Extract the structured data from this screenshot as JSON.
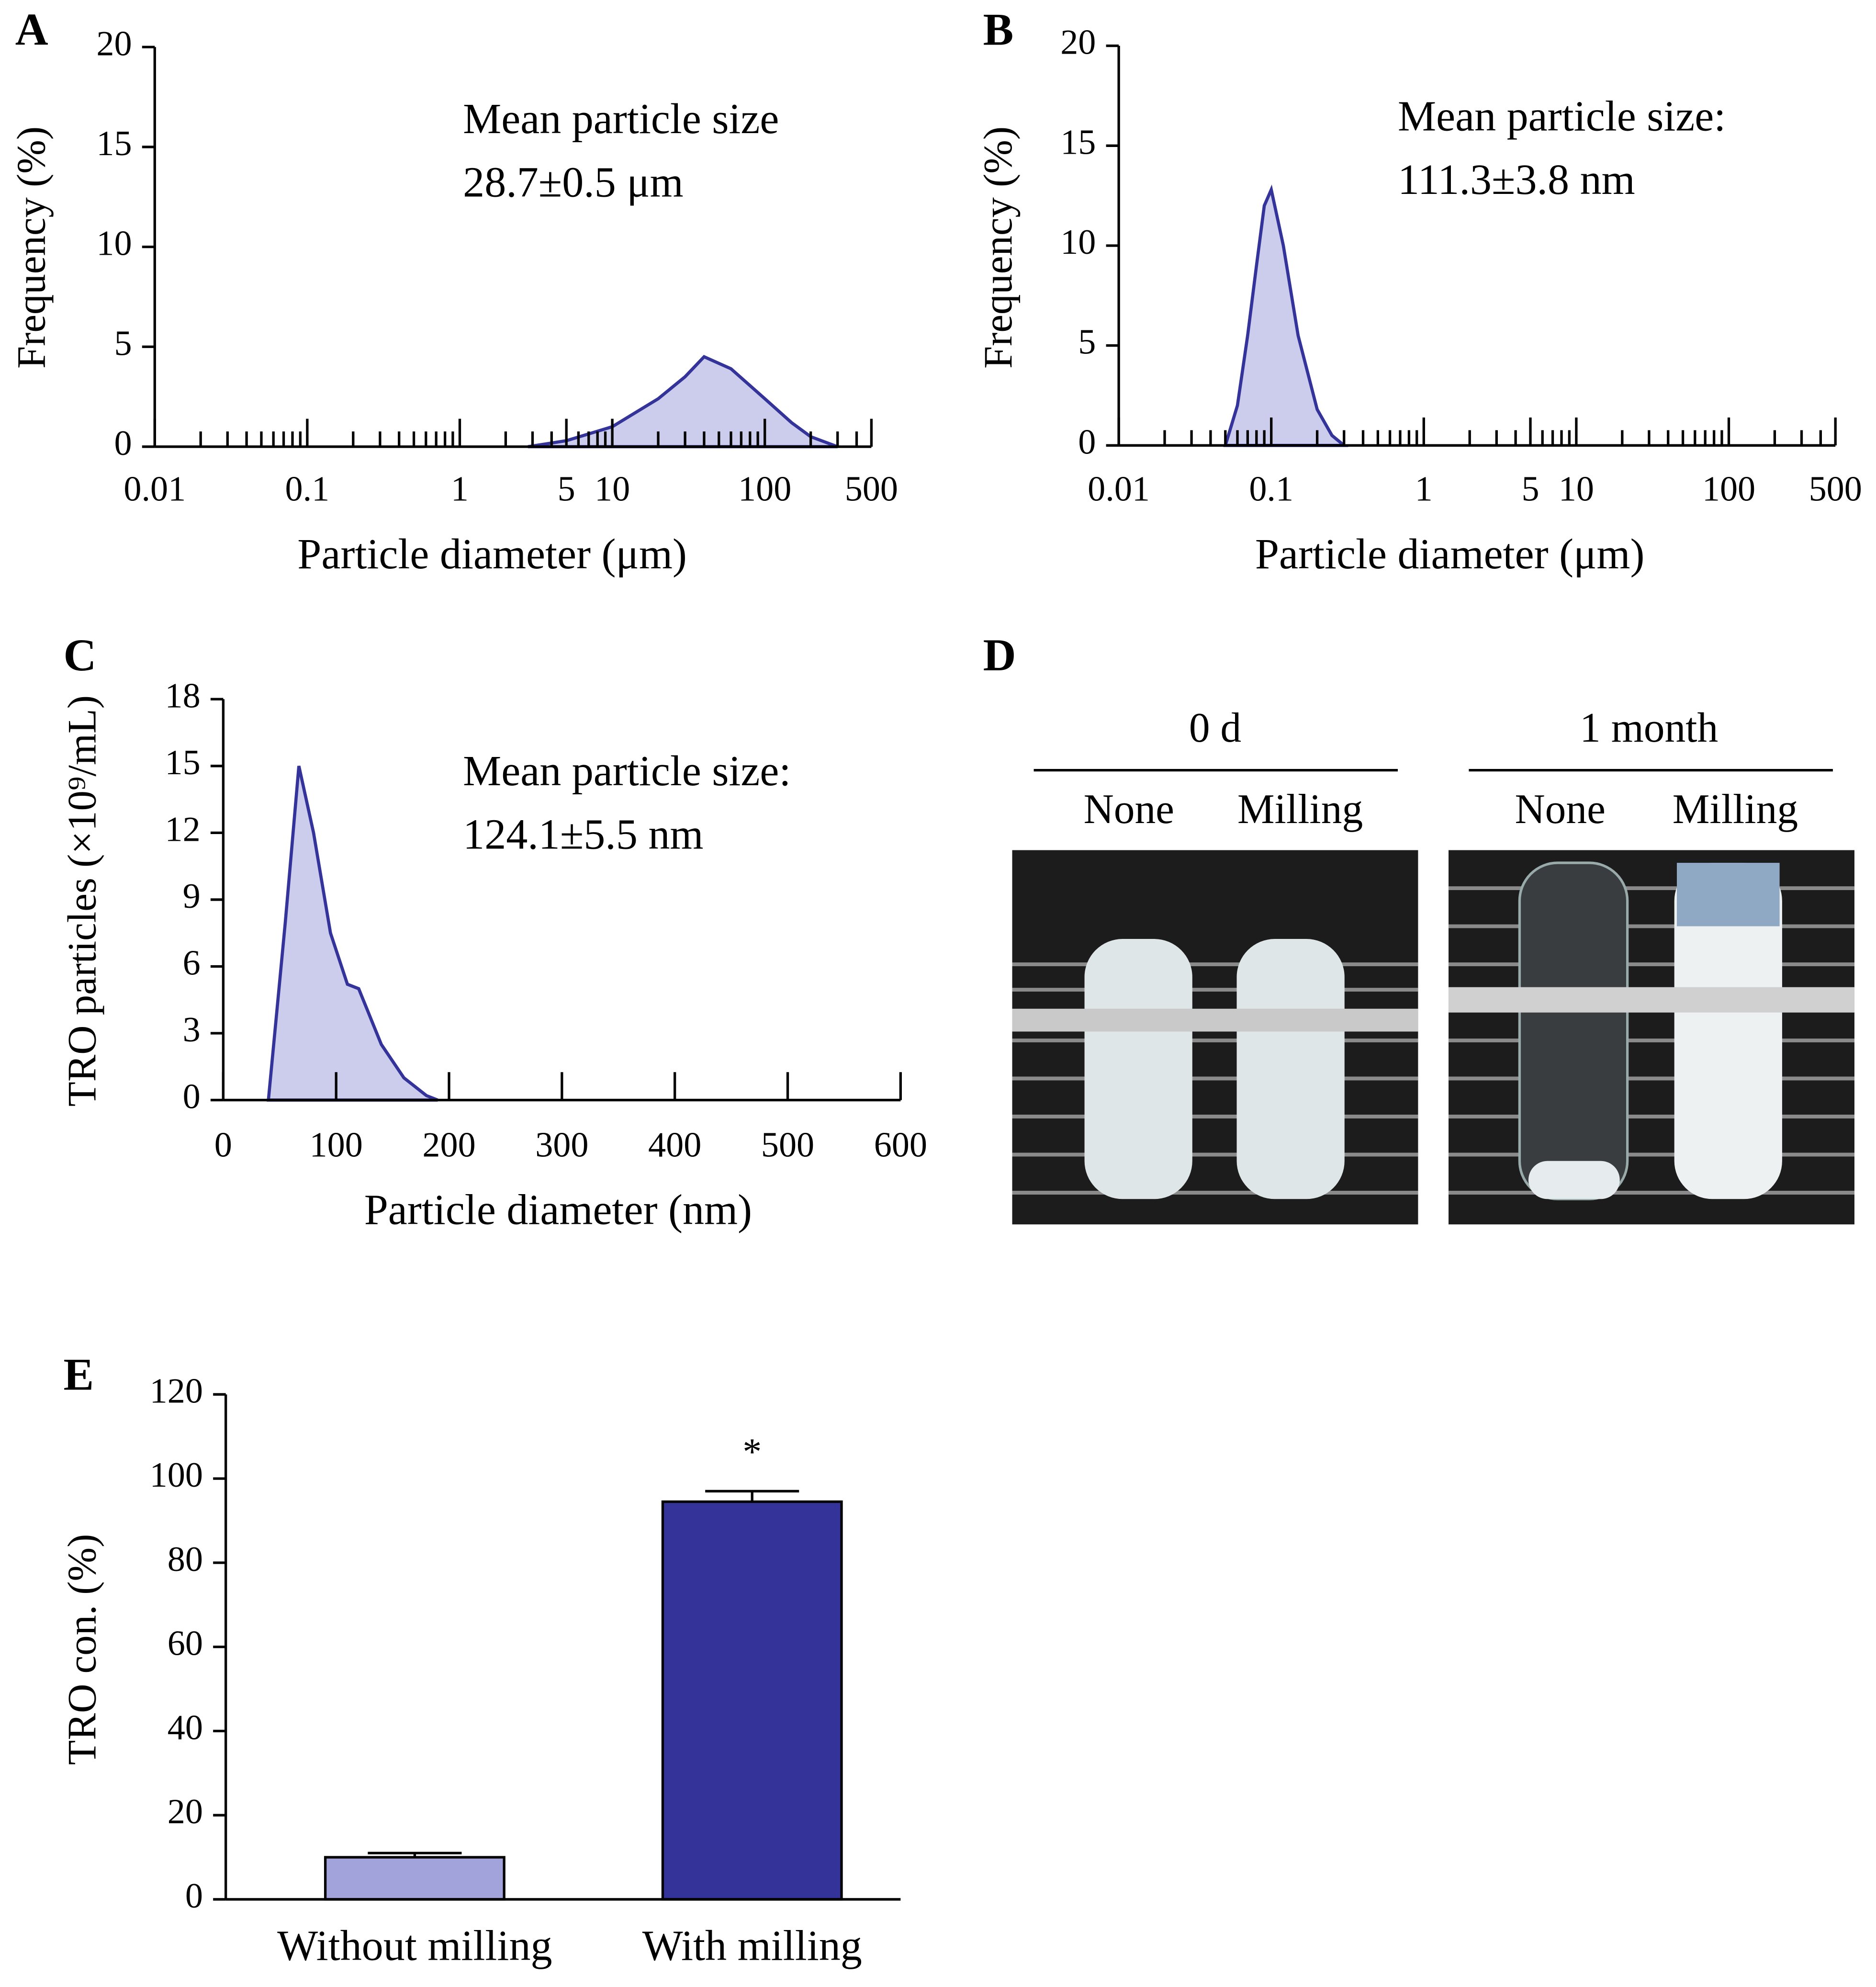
{
  "chart_data": [
    {
      "type": "area",
      "panel_label": "A",
      "xscale": "log",
      "x_label": "Particle diameter (μm)",
      "y_label": "Frequency (%)",
      "annotation": [
        "Mean particle size",
        "28.7±0.5 μm"
      ],
      "x": [
        2.8,
        5,
        10,
        20,
        30,
        40,
        60,
        100,
        150,
        200,
        300
      ],
      "values": [
        0,
        0.3,
        1.0,
        2.4,
        3.5,
        4.5,
        3.9,
        2.4,
        1.2,
        0.5,
        0
      ],
      "color": "#33339a",
      "fill": "#ccccec",
      "xlim": [
        0.01,
        500
      ],
      "xticks": [
        0.01,
        0.1,
        1,
        5,
        10,
        100,
        500
      ],
      "xticks_minor": [
        0.02,
        0.03,
        0.04,
        0.05,
        0.06,
        0.07,
        0.08,
        0.09,
        0.2,
        0.3,
        0.4,
        0.5,
        0.6,
        0.7,
        0.8,
        0.9,
        2,
        3,
        4,
        6,
        7,
        8,
        9,
        20,
        30,
        40,
        50,
        60,
        70,
        80,
        90,
        200,
        300,
        400
      ],
      "ylim": [
        0,
        20
      ],
      "yticks": [
        0,
        5,
        10,
        15,
        20
      ]
    },
    {
      "type": "area",
      "panel_label": "B",
      "xscale": "log",
      "x_label": "Particle diameter (μm)",
      "y_label": "Frequency (%)",
      "annotation": [
        "Mean particle size:",
        "111.3±3.8 nm"
      ],
      "x": [
        0.05,
        0.06,
        0.07,
        0.08,
        0.09,
        0.1,
        0.12,
        0.15,
        0.2,
        0.25,
        0.3
      ],
      "values": [
        0,
        2,
        5.5,
        9,
        12,
        12.8,
        10,
        5.5,
        1.8,
        0.5,
        0
      ],
      "color": "#33339a",
      "fill": "#ccccec",
      "xlim": [
        0.01,
        500
      ],
      "xticks": [
        0.01,
        0.1,
        1,
        5,
        10,
        100,
        500
      ],
      "xticks_minor": [
        0.02,
        0.03,
        0.04,
        0.05,
        0.06,
        0.07,
        0.08,
        0.09,
        0.2,
        0.3,
        0.4,
        0.5,
        0.6,
        0.7,
        0.8,
        0.9,
        2,
        3,
        4,
        6,
        7,
        8,
        9,
        20,
        30,
        40,
        50,
        60,
        70,
        80,
        90,
        200,
        300,
        400
      ],
      "ylim": [
        0,
        20
      ],
      "yticks": [
        0,
        5,
        10,
        15,
        20
      ]
    },
    {
      "type": "area",
      "panel_label": "C",
      "xscale": "linear",
      "x_label": "Particle diameter (nm)",
      "y_label": "TRO particles (×10⁹/mL)",
      "annotation": [
        "Mean particle size:",
        "124.1±5.5 nm"
      ],
      "x": [
        40,
        55,
        67,
        80,
        95,
        110,
        120,
        140,
        160,
        180,
        190
      ],
      "values": [
        0,
        8,
        15,
        12,
        7.5,
        5.2,
        5,
        2.5,
        1,
        0.2,
        0
      ],
      "color": "#33339a",
      "fill": "#ccccec",
      "xlim": [
        0,
        600
      ],
      "xticks": [
        0,
        100,
        200,
        300,
        400,
        500,
        600
      ],
      "ylim": [
        0,
        18
      ],
      "yticks": [
        0,
        3,
        6,
        9,
        12,
        15,
        18
      ]
    },
    {
      "type": "bar",
      "panel_label": "E",
      "y_label": "TRO con. (%)",
      "categories": [
        "Without milling",
        "With milling"
      ],
      "values": [
        10,
        94.5
      ],
      "errors": [
        1,
        2.5
      ],
      "colors": [
        "#a3a3dc",
        "#333399"
      ],
      "annotation": "*",
      "ylim": [
        0,
        120
      ],
      "yticks": [
        0,
        20,
        40,
        60,
        80,
        100,
        120
      ]
    }
  ],
  "photo_panel": {
    "panel_label": "D",
    "groups": [
      {
        "label": "0 d",
        "columns": [
          "None",
          "Milling"
        ]
      },
      {
        "label": "1 month",
        "columns": [
          "None",
          "Milling"
        ]
      }
    ]
  }
}
